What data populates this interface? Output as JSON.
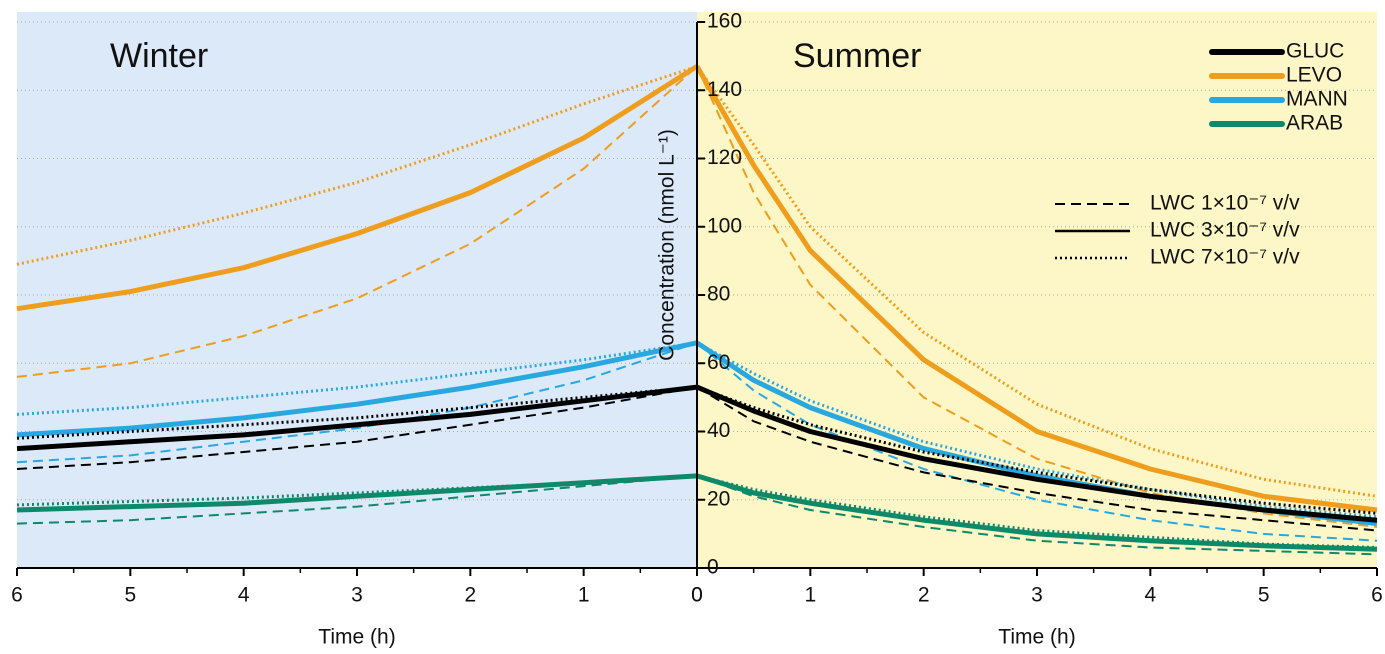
{
  "chart_data": [
    {
      "type": "line",
      "title": "Winter",
      "background": "#dbe9f8",
      "x_label": "Time (h)",
      "xlim": [
        6,
        0
      ],
      "xticks": [
        6,
        5,
        4,
        3,
        2,
        1,
        0
      ],
      "ylim": [
        0,
        160
      ],
      "x": [
        6,
        5,
        4,
        3,
        2,
        1,
        0
      ],
      "series": [
        {
          "color": "#ef9d1c",
          "linestyle": "solid",
          "values": [
            76,
            81,
            88,
            98,
            110,
            126,
            147
          ]
        },
        {
          "color": "#ef9d1c",
          "linestyle": "dotted",
          "values": [
            89,
            96,
            104,
            113,
            124,
            136,
            147
          ]
        },
        {
          "color": "#ef9d1c",
          "linestyle": "dashed",
          "values": [
            56,
            60,
            68,
            79,
            95,
            117,
            147
          ]
        },
        {
          "color": "#29a8e0",
          "linestyle": "solid",
          "values": [
            39,
            41,
            44,
            48,
            53,
            59,
            66
          ]
        },
        {
          "color": "#29a8e0",
          "linestyle": "dotted",
          "values": [
            45,
            47,
            50,
            53,
            57,
            61,
            66
          ]
        },
        {
          "color": "#29a8e0",
          "linestyle": "dashed",
          "values": [
            31,
            33,
            37,
            41,
            47,
            55,
            66
          ]
        },
        {
          "color": "#000000",
          "linestyle": "solid",
          "values": [
            35,
            37,
            39,
            42,
            45,
            49,
            53
          ]
        },
        {
          "color": "#000000",
          "linestyle": "dotted",
          "values": [
            38,
            40,
            42,
            44,
            47,
            50,
            53
          ]
        },
        {
          "color": "#000000",
          "linestyle": "dashed",
          "values": [
            29,
            31,
            34,
            37,
            42,
            47,
            53
          ]
        },
        {
          "color": "#0e8a6a",
          "linestyle": "solid",
          "values": [
            17,
            18,
            19,
            21,
            23,
            25,
            27
          ]
        },
        {
          "color": "#0e8a6a",
          "linestyle": "dotted",
          "values": [
            18.5,
            19.5,
            20.5,
            22,
            23.5,
            25,
            27
          ]
        },
        {
          "color": "#0e8a6a",
          "linestyle": "dashed",
          "values": [
            13,
            14,
            16,
            18,
            21,
            24,
            27
          ]
        }
      ]
    },
    {
      "type": "line",
      "title": "Summer",
      "background": "#fdf6c6",
      "x_label": "Time (h)",
      "y_label": "Concentration (nmol L⁻¹)",
      "grid": true,
      "xlim": [
        0,
        6
      ],
      "xticks": [
        0,
        1,
        2,
        3,
        4,
        5,
        6
      ],
      "ylim": [
        0,
        160
      ],
      "yticks": [
        0,
        20,
        40,
        60,
        80,
        100,
        120,
        140,
        160
      ],
      "x": [
        0,
        0.5,
        1,
        2,
        3,
        4,
        5,
        6
      ],
      "series": [
        {
          "color": "#ef9d1c",
          "linestyle": "solid",
          "values": [
            147,
            118,
            93,
            61,
            40,
            29,
            21,
            17
          ]
        },
        {
          "color": "#ef9d1c",
          "linestyle": "dotted",
          "values": [
            147,
            124,
            100,
            69,
            48,
            35,
            26,
            21
          ]
        },
        {
          "color": "#ef9d1c",
          "linestyle": "dashed",
          "values": [
            147,
            110,
            83,
            50,
            32,
            22,
            16,
            12
          ]
        },
        {
          "color": "#29a8e0",
          "linestyle": "solid",
          "values": [
            66,
            55,
            47,
            35,
            27,
            21,
            17,
            13
          ]
        },
        {
          "color": "#29a8e0",
          "linestyle": "dotted",
          "values": [
            66,
            57,
            49,
            37,
            29,
            23,
            18,
            15
          ]
        },
        {
          "color": "#29a8e0",
          "linestyle": "dashed",
          "values": [
            66,
            52,
            42,
            29,
            20,
            14,
            10,
            8
          ]
        },
        {
          "color": "#000000",
          "linestyle": "solid",
          "values": [
            53,
            46,
            40,
            32,
            26,
            21,
            17,
            14
          ]
        },
        {
          "color": "#000000",
          "linestyle": "dotted",
          "values": [
            53,
            47,
            42,
            34,
            28,
            23,
            19,
            16
          ]
        },
        {
          "color": "#000000",
          "linestyle": "dashed",
          "values": [
            53,
            43,
            37,
            28,
            22,
            17,
            14,
            11
          ]
        },
        {
          "color": "#0e8a6a",
          "linestyle": "solid",
          "values": [
            27,
            22,
            19,
            14,
            10,
            8,
            6.5,
            5.5
          ]
        },
        {
          "color": "#0e8a6a",
          "linestyle": "dotted",
          "values": [
            27,
            23,
            20,
            15,
            11,
            9,
            7,
            6
          ]
        },
        {
          "color": "#0e8a6a",
          "linestyle": "dashed",
          "values": [
            27,
            21,
            17,
            12,
            8,
            6,
            5,
            4
          ]
        }
      ],
      "legend": [
        {
          "name": "GLUC",
          "color": "#000000"
        },
        {
          "name": "LEVO",
          "color": "#ef9d1c"
        },
        {
          "name": "MANN",
          "color": "#29a8e0"
        },
        {
          "name": "ARAB",
          "color": "#0e8a6a"
        }
      ],
      "linestyle_legend": [
        {
          "label": "LWC 1×10⁻⁷ v/v",
          "linestyle": "dashed"
        },
        {
          "label": "LWC 3×10⁻⁷ v/v",
          "linestyle": "solid"
        },
        {
          "label": "LWC 7×10⁻⁷ v/v",
          "linestyle": "dotted"
        }
      ]
    }
  ]
}
